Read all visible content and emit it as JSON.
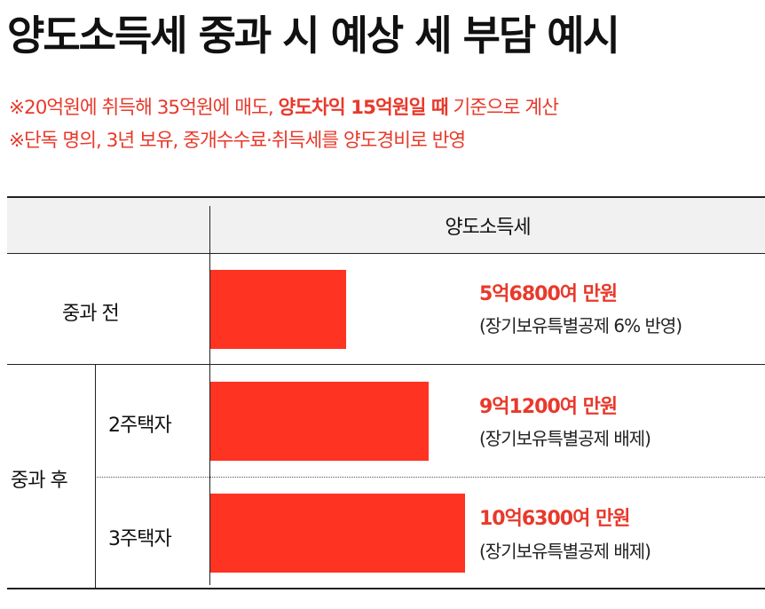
{
  "header": {
    "title": "양도소득세 중과 시 예상 세 부담 예시",
    "note1_pre": "※20억원에 취득해 35억원에 매도, ",
    "note1_bold": "양도차익 15억원일 때",
    "note1_post": " 기준으로 계산",
    "note2": "※단독 명의, 3년 보유, 중개수수료·취득세를 양도경비로 반영"
  },
  "table": {
    "column_header": "양도소득세",
    "group_label": "중과 후"
  },
  "chart_data": {
    "type": "bar",
    "orientation": "horizontal",
    "categories": [
      "중과 전",
      "2주택자",
      "3주택자"
    ],
    "values": [
      56800,
      91200,
      106300
    ],
    "unit": "만원",
    "value_labels": [
      "5억6800여 만원",
      "9억1200여 만원",
      "10억6300여 만원"
    ],
    "notes": [
      "(장기보유특별공제 6% 반영)",
      "(장기보유특별공제 배제)",
      "(장기보유특별공제 배제)"
    ],
    "bar_color": "#ff3322",
    "label_color": "#e8392b"
  }
}
